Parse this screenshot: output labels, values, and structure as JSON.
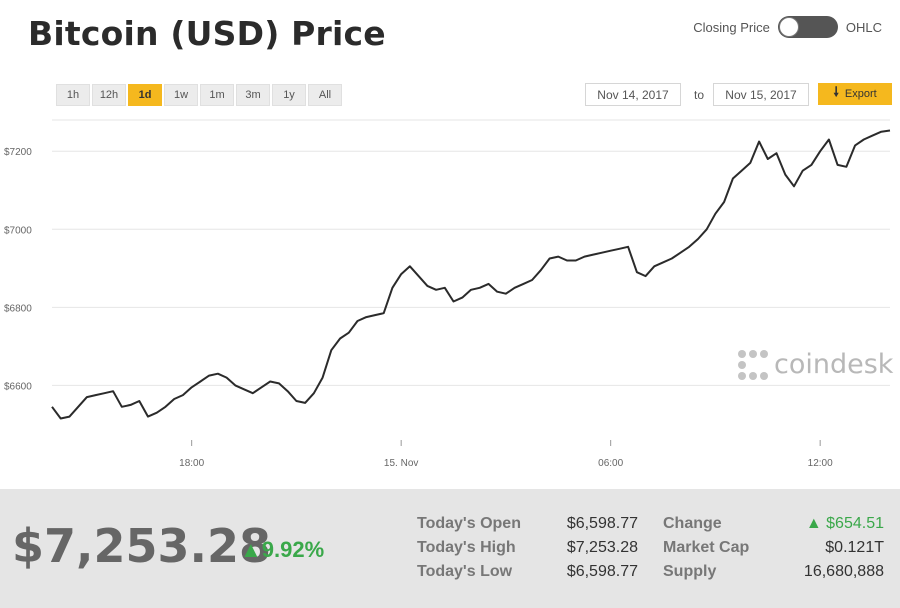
{
  "header": {
    "title": "Bitcoin (USD) Price",
    "toggle_left": "Closing Price",
    "toggle_right": "OHLC"
  },
  "ranges": [
    {
      "label": "1h",
      "active": false
    },
    {
      "label": "12h",
      "active": false
    },
    {
      "label": "1d",
      "active": true
    },
    {
      "label": "1w",
      "active": false
    },
    {
      "label": "1m",
      "active": false
    },
    {
      "label": "3m",
      "active": false
    },
    {
      "label": "1y",
      "active": false
    },
    {
      "label": "All",
      "active": false
    }
  ],
  "date_range": {
    "from": "Nov 14, 2017",
    "to_label": "to",
    "to": "Nov 15, 2017"
  },
  "export": {
    "label": "Export",
    "icon": "download-arrow-icon"
  },
  "watermark": {
    "text": "coindesk"
  },
  "colors": {
    "accent": "#f5b81e",
    "up": "#3aa84a",
    "line": "#2b2b2b"
  },
  "chart_data": {
    "type": "line",
    "x_ticks": [
      {
        "label": "18:00",
        "hour": 4
      },
      {
        "label": "15. Nov",
        "hour": 10
      },
      {
        "label": "06:00",
        "hour": 16
      },
      {
        "label": "12:00",
        "hour": 22
      }
    ],
    "y_ticks": [
      {
        "label": "$6600",
        "value": 6600
      },
      {
        "label": "$6800",
        "value": 6800
      },
      {
        "label": "$7000",
        "value": 7000
      },
      {
        "label": "$7200",
        "value": 7200
      }
    ],
    "ylim": [
      6460,
      7280
    ],
    "xlim": [
      0,
      24
    ],
    "series": [
      {
        "hour": [
          0,
          0.25,
          0.5,
          0.75,
          1,
          1.25,
          1.5,
          1.75,
          2,
          2.25,
          2.5,
          2.75,
          3,
          3.25,
          3.5,
          3.75,
          4,
          4.25,
          4.5,
          4.75,
          5,
          5.25,
          5.5,
          5.75,
          6,
          6.25,
          6.5,
          6.75,
          7,
          7.25,
          7.5,
          7.75,
          8,
          8.25,
          8.5,
          8.75,
          9,
          9.25,
          9.5,
          9.75,
          10,
          10.25,
          10.5,
          10.75,
          11,
          11.25,
          11.5,
          11.75,
          12,
          12.25,
          12.5,
          12.75,
          13,
          13.25,
          13.5,
          13.75,
          14,
          14.25,
          14.5,
          14.75,
          15,
          15.25,
          15.5,
          15.75,
          16,
          16.25,
          16.5,
          16.75,
          17,
          17.25,
          17.5,
          17.75,
          18,
          18.25,
          18.5,
          18.75,
          19,
          19.25,
          19.5,
          19.75,
          20,
          20.25,
          20.5,
          20.75,
          21,
          21.25,
          21.5,
          21.75,
          22,
          22.25,
          22.5,
          22.75,
          23,
          23.25,
          23.5,
          23.75,
          24
        ],
        "value": [
          6545,
          6515,
          6520,
          6545,
          6570,
          6575,
          6580,
          6585,
          6545,
          6550,
          6560,
          6520,
          6530,
          6545,
          6565,
          6575,
          6595,
          6610,
          6625,
          6630,
          6620,
          6600,
          6590,
          6580,
          6595,
          6610,
          6605,
          6585,
          6560,
          6555,
          6580,
          6620,
          6690,
          6720,
          6735,
          6765,
          6775,
          6780,
          6785,
          6850,
          6885,
          6905,
          6880,
          6855,
          6845,
          6850,
          6815,
          6825,
          6845,
          6850,
          6860,
          6840,
          6835,
          6850,
          6860,
          6870,
          6895,
          6925,
          6930,
          6920,
          6920,
          6930,
          6935,
          6940,
          6945,
          6950,
          6955,
          6890,
          6880,
          6905,
          6915,
          6925,
          6940,
          6955,
          6975,
          7000,
          7040,
          7070,
          7130,
          7150,
          7170,
          7225,
          7180,
          7195,
          7140,
          7110,
          7150,
          7165,
          7200,
          7230,
          7165,
          7160,
          7215,
          7230,
          7240,
          7250,
          7253
        ]
      }
    ]
  },
  "summary": {
    "price": "$7,253.28",
    "change_pct": "9.92%",
    "open_label": "Today's Open",
    "open": "$6,598.77",
    "high_label": "Today's High",
    "high": "$7,253.28",
    "low_label": "Today's Low",
    "low": "$6,598.77",
    "change_label": "Change",
    "change": "$654.51",
    "mcap_label": "Market Cap",
    "mcap": "$0.121T",
    "supply_label": "Supply",
    "supply": "16,680,888"
  }
}
